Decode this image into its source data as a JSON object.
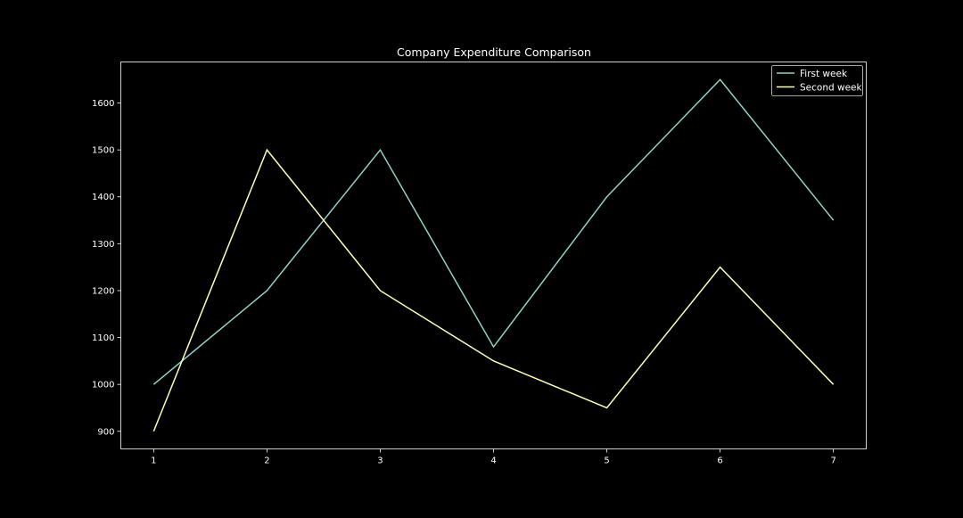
{
  "chart_data": {
    "type": "line",
    "title": "Company Expenditure Comparison",
    "xlabel": "",
    "ylabel": "",
    "x": [
      1,
      2,
      3,
      4,
      5,
      6,
      7
    ],
    "xlim": [
      0.71,
      7.29
    ],
    "ylim": [
      862.5,
      1687.5
    ],
    "xticks": [
      1,
      2,
      3,
      4,
      5,
      6,
      7
    ],
    "yticks": [
      900,
      1000,
      1100,
      1200,
      1300,
      1400,
      1500,
      1600
    ],
    "grid": false,
    "legend_position": "top-right",
    "background": "#000000",
    "series": [
      {
        "name": "First week",
        "color": "#8dd3c7",
        "values": [
          1000,
          1200,
          1500,
          1080,
          1400,
          1650,
          1350
        ]
      },
      {
        "name": "Second week",
        "color": "#feffb3",
        "values": [
          900,
          1500,
          1200,
          1050,
          950,
          1250,
          1000
        ]
      }
    ]
  }
}
